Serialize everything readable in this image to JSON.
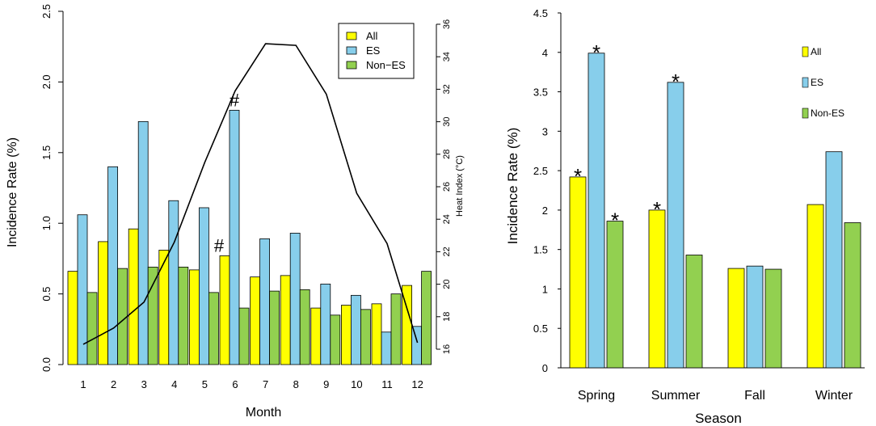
{
  "colors": {
    "all": "#ffff00",
    "es": "#87ceeb",
    "non_es": "#92d050",
    "line": "#000000"
  },
  "chart_data": [
    {
      "type": "bar",
      "categories": [
        "1",
        "2",
        "3",
        "4",
        "5",
        "6",
        "7",
        "8",
        "9",
        "10",
        "11",
        "12"
      ],
      "series": [
        {
          "name": "All",
          "color": "#ffff00",
          "values": [
            0.66,
            0.87,
            0.96,
            0.81,
            0.67,
            0.77,
            0.62,
            0.63,
            0.4,
            0.42,
            0.43,
            0.56
          ]
        },
        {
          "name": "ES",
          "color": "#87ceeb",
          "values": [
            1.06,
            1.4,
            1.72,
            1.16,
            1.11,
            1.8,
            0.89,
            0.93,
            0.57,
            0.49,
            0.23,
            0.27
          ]
        },
        {
          "name": "Non−ES",
          "color": "#92d050",
          "values": [
            0.51,
            0.68,
            0.69,
            0.69,
            0.51,
            0.4,
            0.52,
            0.53,
            0.35,
            0.39,
            0.5,
            0.66
          ]
        }
      ],
      "line_series": {
        "name": "Heat Index",
        "values": [
          16.3,
          17.3,
          18.9,
          22.6,
          27.5,
          31.9,
          34.8,
          34.7,
          31.7,
          25.6,
          22.5,
          16.4
        ]
      },
      "xlabel": "Month",
      "ylabel": "Incidence Rate (%)",
      "ylabel_right": "Heat Index (°C)",
      "ylim": [
        0,
        2.5
      ],
      "ylim_right": [
        16,
        36
      ],
      "yticks": [
        "0.0",
        "0.5",
        "1.0",
        "1.5",
        "2.0",
        "2.5"
      ],
      "yticks_right": [
        "16",
        "18",
        "20",
        "22",
        "24",
        "26",
        "28",
        "30",
        "32",
        "34",
        "36"
      ],
      "annotations": [
        {
          "text": "#",
          "category": "6",
          "series": "ES"
        },
        {
          "text": "#",
          "category": "6",
          "series": "All"
        }
      ],
      "legend": {
        "position": "top-right",
        "entries": [
          "All",
          "ES",
          "Non−ES"
        ]
      }
    },
    {
      "type": "bar",
      "categories": [
        "Spring",
        "Summer",
        "Fall",
        "Winter"
      ],
      "series": [
        {
          "name": "All",
          "color": "#ffff00",
          "values": [
            2.42,
            2.0,
            1.26,
            2.07
          ]
        },
        {
          "name": "ES",
          "color": "#87ceeb",
          "values": [
            3.99,
            3.62,
            1.29,
            2.74
          ]
        },
        {
          "name": "Non-ES",
          "color": "#92d050",
          "values": [
            1.86,
            1.43,
            1.25,
            1.84
          ]
        }
      ],
      "xlabel": "Season",
      "ylabel": "Incidence Rate (%)",
      "ylim": [
        0,
        4.5
      ],
      "yticks": [
        "0",
        "0.5",
        "1",
        "1.5",
        "2",
        "2.5",
        "3",
        "3.5",
        "4",
        "4.5"
      ],
      "annotations": [
        {
          "text": "*",
          "category": "Spring",
          "series": "All"
        },
        {
          "text": "*",
          "category": "Spring",
          "series": "ES"
        },
        {
          "text": "*",
          "category": "Spring",
          "series": "Non-ES"
        },
        {
          "text": "*",
          "category": "Summer",
          "series": "All"
        },
        {
          "text": "*",
          "category": "Summer",
          "series": "ES"
        }
      ],
      "legend": {
        "position": "right",
        "entries": [
          "All",
          "ES",
          "Non-ES"
        ]
      }
    }
  ]
}
